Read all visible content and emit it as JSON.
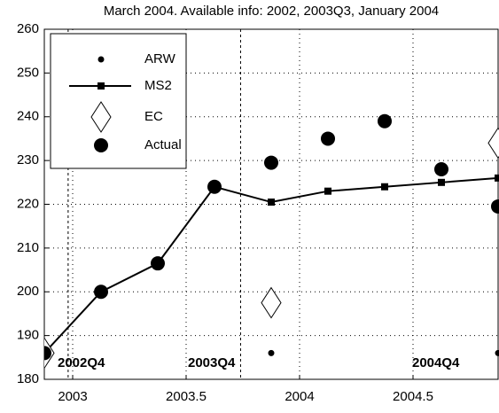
{
  "chart_data": {
    "type": "line",
    "title": "March 2004. Available info: 2002, 2003Q3, January 2004",
    "xlim": [
      2002.875,
      2004.875
    ],
    "xticks": [
      2003,
      2003.5,
      2004,
      2004.5
    ],
    "ylim": [
      180,
      260
    ],
    "yticks": [
      180,
      190,
      200,
      210,
      220,
      230,
      240,
      250,
      260
    ],
    "grid": true,
    "legend": "upper left",
    "vlines": [
      2002.98,
      2003.74
    ],
    "annotations": [
      "2002Q4",
      "2003Q4",
      "2004Q4"
    ],
    "series": [
      {
        "name": "ARW",
        "color": "#000000",
        "marker": "dot",
        "x": [
          2003.875,
          2004.875
        ],
        "values": [
          186,
          186
        ]
      },
      {
        "name": "MS2",
        "color": "#000000",
        "marker": "square-line",
        "x": [
          2002.875,
          2003.125,
          2003.375,
          2003.625,
          2003.875,
          2004.125,
          2004.375,
          2004.625,
          2004.875
        ],
        "values": [
          186,
          200,
          206.5,
          224,
          220.5,
          223,
          224,
          225,
          226
        ]
      },
      {
        "name": "EC",
        "color": "#000000",
        "marker": "diamond",
        "x": [
          2002.875,
          2003.875,
          2004.875
        ],
        "values": [
          186,
          197.5,
          234
        ]
      },
      {
        "name": "Actual",
        "color": "#000000",
        "marker": "big-dot",
        "x": [
          2002.875,
          2003.125,
          2003.375,
          2003.625,
          2003.875,
          2004.125,
          2004.375,
          2004.625,
          2004.875
        ],
        "values": [
          186,
          200,
          206.5,
          224,
          229.5,
          235,
          239,
          228,
          219.5
        ]
      }
    ]
  }
}
